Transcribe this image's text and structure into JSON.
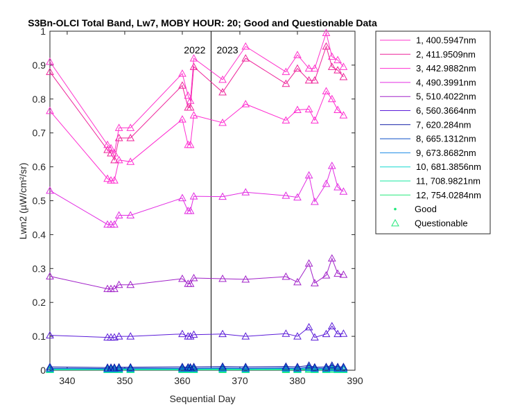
{
  "chart_data": {
    "type": "line",
    "title": "S3Bn-OLCI Total Band, Lw7, MOBY HOUR: 20;  Good and Questionable Data",
    "xlabel": "Sequential Day",
    "ylabel": "Lwn2 (µW/cm²/sr)",
    "xlim": [
      337,
      390
    ],
    "ylim": [
      0,
      1
    ],
    "xticks": [
      "340",
      "350",
      "360",
      "370",
      "380",
      "390"
    ],
    "yticks": [
      "0",
      "0.1",
      "0.2",
      "0.3",
      "0.4",
      "0.5",
      "0.6",
      "0.7",
      "0.8",
      "0.9",
      "1"
    ],
    "grid": false,
    "legend_position": "outside-right",
    "year_divider": {
      "x": 365,
      "left_label": "2022",
      "right_label": "2023"
    },
    "x": [
      337,
      347,
      347.6,
      348.2,
      349,
      351,
      360,
      361,
      361.4,
      362,
      367,
      371,
      378,
      380,
      382,
      383,
      385,
      386,
      387,
      388
    ],
    "series": [
      {
        "name": "1, 400.5947nm",
        "color": "#ff33cc",
        "values": [
          0.91,
          0.665,
          0.655,
          0.64,
          0.715,
          0.715,
          0.875,
          0.81,
          0.795,
          0.92,
          0.857,
          0.955,
          0.88,
          0.93,
          0.89,
          0.89,
          0.995,
          0.925,
          0.915,
          0.895
        ]
      },
      {
        "name": "2, 411.9509nm",
        "color": "#ee2299",
        "values": [
          0.88,
          0.65,
          0.64,
          0.62,
          0.685,
          0.685,
          0.84,
          0.775,
          0.775,
          0.895,
          0.82,
          0.92,
          0.845,
          0.89,
          0.855,
          0.855,
          0.955,
          0.895,
          0.885,
          0.865
        ]
      },
      {
        "name": "3, 442.9882nm",
        "color": "#ff2bd0",
        "values": [
          0.765,
          0.565,
          0.56,
          0.56,
          0.62,
          0.615,
          0.74,
          0.665,
          0.665,
          0.752,
          0.73,
          0.785,
          0.737,
          0.768,
          0.77,
          0.737,
          0.823,
          0.8,
          0.768,
          0.752
        ]
      },
      {
        "name": "4, 490.3991nm",
        "color": "#e22ce2",
        "values": [
          0.53,
          0.43,
          0.43,
          0.43,
          0.457,
          0.457,
          0.508,
          0.47,
          0.47,
          0.513,
          0.512,
          0.525,
          0.515,
          0.51,
          0.575,
          0.497,
          0.55,
          0.603,
          0.54,
          0.527
        ]
      },
      {
        "name": "5, 510.4022nm",
        "color": "#a020c8",
        "values": [
          0.277,
          0.24,
          0.24,
          0.24,
          0.252,
          0.252,
          0.27,
          0.255,
          0.255,
          0.272,
          0.27,
          0.268,
          0.276,
          0.26,
          0.315,
          0.257,
          0.28,
          0.33,
          0.285,
          0.282
        ]
      },
      {
        "name": "6, 560.3664nm",
        "color": "#5a1ad8",
        "values": [
          0.103,
          0.097,
          0.097,
          0.097,
          0.1,
          0.1,
          0.107,
          0.1,
          0.1,
          0.105,
          0.107,
          0.1,
          0.108,
          0.1,
          0.127,
          0.097,
          0.107,
          0.13,
          0.107,
          0.108
        ]
      },
      {
        "name": "7,  620.284nm",
        "color": "#0f1aa6",
        "values": [
          0.01,
          0.008,
          0.008,
          0.008,
          0.009,
          0.009,
          0.01,
          0.009,
          0.009,
          0.01,
          0.011,
          0.01,
          0.011,
          0.01,
          0.014,
          0.009,
          0.01,
          0.014,
          0.01,
          0.01
        ]
      },
      {
        "name": "8, 665.1312nm",
        "color": "#0a4ec8",
        "values": [
          0.006,
          0.005,
          0.005,
          0.005,
          0.006,
          0.006,
          0.006,
          0.006,
          0.006,
          0.006,
          0.007,
          0.006,
          0.007,
          0.006,
          0.009,
          0.006,
          0.006,
          0.009,
          0.006,
          0.006
        ]
      },
      {
        "name": "9, 673.8682nm",
        "color": "#1a8ae6",
        "values": [
          0.005,
          0.004,
          0.004,
          0.004,
          0.005,
          0.005,
          0.005,
          0.005,
          0.005,
          0.005,
          0.006,
          0.005,
          0.006,
          0.005,
          0.008,
          0.005,
          0.005,
          0.008,
          0.005,
          0.005
        ]
      },
      {
        "name": "10, 681.3856nm",
        "color": "#14d8d0",
        "values": [
          0.004,
          0.003,
          0.003,
          0.003,
          0.004,
          0.004,
          0.004,
          0.004,
          0.004,
          0.004,
          0.005,
          0.004,
          0.005,
          0.004,
          0.007,
          0.004,
          0.004,
          0.007,
          0.004,
          0.004
        ]
      },
      {
        "name": "11, 708.9821nm",
        "color": "#14e8a0",
        "values": [
          0.002,
          0.002,
          0.002,
          0.002,
          0.002,
          0.002,
          0.002,
          0.002,
          0.002,
          0.002,
          0.003,
          0.002,
          0.003,
          0.002,
          0.004,
          0.002,
          0.002,
          0.004,
          0.002,
          0.002
        ]
      },
      {
        "name": "12, 754.0284nm",
        "color": "#22e87a",
        "values": [
          0.001,
          0.001,
          0.001,
          0.001,
          0.001,
          0.001,
          0.001,
          0.001,
          0.001,
          0.001,
          0.001,
          0.001,
          0.001,
          0.001,
          0.002,
          0.001,
          0.001,
          0.002,
          0.001,
          0.001
        ]
      }
    ],
    "marker_legend": [
      {
        "name": "Good",
        "marker": "dot",
        "color": "#22e87a"
      },
      {
        "name": "Questionable",
        "marker": "triangle",
        "color": "#22e87a"
      }
    ]
  }
}
